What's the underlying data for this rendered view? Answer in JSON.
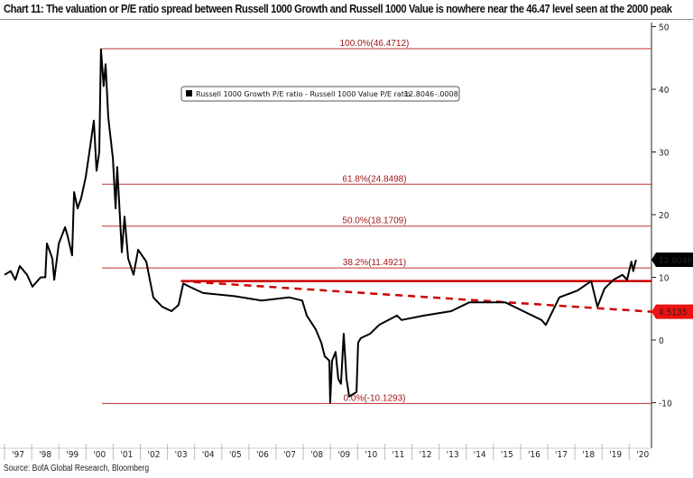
{
  "title": "Chart 11: The valuation or P/E ratio spread between Russell 1000 Growth and Russell 1000 Value is nowhere near the 46.47 level seen at the 2000 peak",
  "source": "Source: BofA Global Research, Bloomberg",
  "chart_data": {
    "type": "line",
    "title": "Chart 11: The valuation or P/E ratio spread between Russell 1000 Growth and Russell 1000 Value is nowhere near the 46.47 level seen at the 2000 peak",
    "xlim": [
      1997,
      2020.6
    ],
    "ylim": [
      -13,
      51
    ],
    "y_axis_side": "right",
    "y_ticks": [
      50,
      40,
      30,
      20,
      10,
      0,
      -10
    ],
    "x_tick_labels": [
      "'97",
      "'98",
      "'99",
      "'00",
      "'01",
      "'02",
      "'03",
      "'04",
      "'05",
      "'06",
      "'07",
      "'08",
      "'09",
      "'10",
      "'11",
      "'12",
      "'13",
      "'14",
      "'15",
      "'16",
      "'17",
      "'18",
      "'19",
      "'20"
    ],
    "legend": {
      "placement": "top-center",
      "text": "Russell 1000 Growth P/E ratio - Russell 1000 Value P/E ratio",
      "last": "12.8046",
      "change": "-.0008"
    },
    "series": [
      {
        "name": "Russell 1000 Growth P/E ratio - Russell 1000 Value P/E ratio",
        "color": "#000000",
        "x": [
          1997.0,
          1997.23,
          1997.4,
          1997.56,
          1997.83,
          1998.03,
          1998.33,
          1998.5,
          1998.56,
          1998.76,
          1998.83,
          1999.0,
          1999.23,
          1999.33,
          1999.49,
          1999.56,
          1999.69,
          1999.82,
          1999.99,
          2000.16,
          2000.29,
          2000.39,
          2000.49,
          2000.55,
          2000.65,
          2000.72,
          2000.82,
          2000.99,
          2001.09,
          2001.15,
          2001.25,
          2001.32,
          2001.42,
          2001.55,
          2001.75,
          2001.92,
          2002.22,
          2002.48,
          2002.65,
          2002.81,
          2003.15,
          2003.41,
          2003.58,
          2003.81,
          2004.31,
          2005.47,
          2006.47,
          2007.47,
          2007.96,
          2008.13,
          2008.46,
          2008.66,
          2008.79,
          2008.96,
          2008.99,
          2009.06,
          2009.19,
          2009.29,
          2009.39,
          2009.49,
          2009.59,
          2009.69,
          2009.96,
          2010.02,
          2010.12,
          2010.46,
          2010.79,
          2011.45,
          2011.62,
          2012.45,
          2013.45,
          2014.11,
          2015.44,
          2016.1,
          2016.77,
          2016.93,
          2017.26,
          2017.43,
          2018.1,
          2018.6,
          2018.83,
          2019.09,
          2019.42,
          2019.75,
          2019.92,
          2020.08,
          2020.15,
          2020.25
        ],
        "y": [
          10.4,
          11.0,
          9.6,
          11.8,
          10.4,
          8.5,
          10.0,
          10.0,
          15.4,
          13.0,
          9.6,
          15.4,
          18.0,
          16.5,
          13.5,
          23.6,
          21.0,
          22.6,
          26.0,
          31.0,
          35.0,
          27.0,
          30.0,
          46.4,
          40.5,
          44.0,
          35.5,
          29.0,
          21.0,
          27.6,
          19.7,
          14.0,
          19.7,
          13.0,
          10.4,
          14.4,
          12.5,
          6.8,
          6.0,
          5.3,
          4.6,
          5.6,
          9.0,
          8.5,
          7.5,
          7.0,
          6.3,
          6.8,
          6.3,
          3.9,
          1.7,
          -0.4,
          -2.6,
          -3.3,
          -10.0,
          -3.3,
          -1.9,
          -6.2,
          -7.0,
          1.0,
          -6.2,
          -9.0,
          -8.3,
          -0.4,
          0.3,
          1.0,
          2.4,
          3.9,
          3.2,
          3.9,
          4.6,
          6.0,
          6.0,
          4.6,
          3.2,
          2.4,
          5.3,
          6.8,
          7.9,
          9.4,
          5.3,
          8.2,
          9.6,
          10.4,
          9.6,
          12.5,
          11.0,
          12.8
        ]
      }
    ],
    "fib_levels": [
      {
        "value": 46.4712,
        "label": "100.0%(46.4712)"
      },
      {
        "value": 24.8498,
        "label": "61.8%(24.8498)"
      },
      {
        "value": 18.1709,
        "label": "50.0%(18.1709)"
      },
      {
        "value": 11.4921,
        "label": "38.2%(11.4921)"
      },
      {
        "value": -10.1293,
        "label": "0.0%(-10.1293)"
      }
    ],
    "resistance_line": {
      "value": 9.4,
      "from": 2003.5,
      "color": "#cc0000"
    },
    "trend_line": {
      "from": [
        2003.5,
        9.4
      ],
      "to": [
        2020.6,
        4.5135
      ],
      "style": "dashed",
      "color": "#cc0000"
    },
    "value_labels": [
      {
        "text": "12.8046",
        "value": 12.8046,
        "bg": "#000000"
      },
      {
        "text": "4.5135",
        "value": 4.5135,
        "bg": "#ee1111"
      }
    ]
  }
}
